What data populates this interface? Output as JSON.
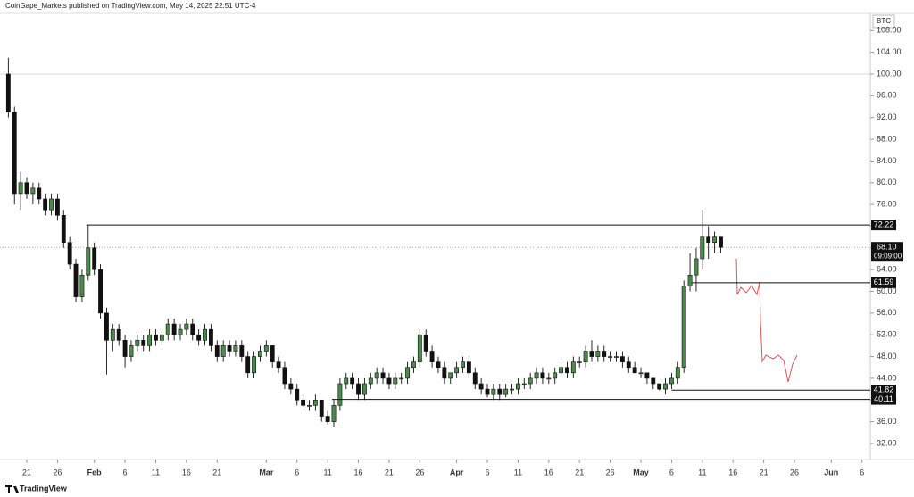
{
  "header": "CoinGape_Markets published on TradingView.com, May 14, 2025 22:51 UTC-4",
  "footer": "TradingView",
  "chart_data": {
    "type": "candlestick",
    "symbol": "BTC",
    "x": [
      18,
      19,
      20,
      21,
      22,
      23,
      24,
      25,
      26,
      27,
      28,
      29,
      30,
      31,
      32,
      33,
      34,
      35,
      36,
      37,
      38,
      39,
      40,
      41,
      42,
      43,
      44,
      45,
      46,
      47,
      48,
      49,
      50,
      51,
      52,
      53,
      54,
      55,
      56,
      57,
      58,
      59,
      60,
      61,
      62,
      63,
      64,
      65,
      66,
      67,
      68,
      69,
      70,
      71,
      72,
      73,
      74,
      75,
      76,
      77,
      78,
      79,
      80,
      81,
      82,
      83,
      84,
      85,
      86,
      87,
      88,
      89,
      90,
      91,
      92,
      93,
      94,
      95,
      96,
      97,
      98,
      99,
      100,
      101,
      102,
      103,
      104,
      105,
      106,
      107,
      108,
      109,
      110,
      111,
      112,
      113,
      114,
      115,
      116,
      117,
      118,
      119,
      120,
      121,
      122,
      123,
      124,
      125,
      126,
      127,
      128,
      129,
      130,
      131,
      132,
      133,
      134
    ],
    "open": [
      100,
      93,
      78,
      80,
      78,
      79,
      77,
      75,
      77,
      74,
      69,
      65,
      59,
      63,
      68,
      64,
      56,
      51,
      53,
      51,
      48,
      50,
      51,
      50,
      52,
      51,
      52,
      54,
      52,
      53,
      54,
      52,
      51,
      53,
      50,
      48,
      50,
      49,
      50,
      48,
      45,
      48,
      49,
      50,
      47,
      46,
      43,
      42,
      40,
      39,
      39,
      40,
      37,
      36,
      39,
      43,
      44,
      43,
      41,
      43,
      44,
      45,
      44,
      43,
      44,
      44,
      46,
      47,
      52,
      49,
      47,
      46,
      44,
      45,
      46,
      47,
      45,
      43,
      42,
      41,
      42,
      41,
      42,
      42,
      43,
      43,
      44,
      45,
      44,
      44,
      45,
      46,
      45,
      47,
      47,
      49,
      48,
      49,
      48,
      48,
      48,
      47,
      46,
      45,
      45,
      44,
      43,
      42,
      43,
      44,
      46,
      61,
      63,
      66,
      70,
      69,
      70
    ],
    "high": [
      103,
      94,
      82,
      81,
      80,
      80,
      78,
      78,
      78,
      75,
      70,
      66,
      64,
      72.22,
      69,
      65,
      57,
      54,
      54,
      52,
      51,
      52,
      52,
      53,
      53,
      53,
      55,
      55,
      54,
      55,
      55,
      53,
      54,
      54,
      51,
      51,
      51,
      51,
      51,
      49,
      49,
      50,
      51,
      50,
      48,
      47,
      44,
      43,
      41,
      40,
      41,
      40,
      38,
      40,
      44,
      45,
      45,
      44,
      44,
      45,
      46,
      46,
      45,
      45,
      45,
      47,
      48,
      53,
      53,
      50,
      48,
      47,
      45,
      47,
      48,
      48,
      46,
      44,
      43,
      43,
      43,
      43,
      43,
      44,
      44,
      45,
      46,
      46,
      45,
      46,
      47,
      47,
      48,
      48,
      50,
      51,
      50,
      50,
      49,
      49,
      49,
      48,
      47,
      46,
      45,
      44,
      43,
      44,
      45,
      47,
      62,
      67,
      68,
      75,
      72,
      71,
      70
    ],
    "low": [
      92,
      76,
      75,
      77,
      76,
      76,
      74,
      74,
      73,
      68,
      64,
      58,
      58,
      62,
      63,
      55,
      44.7,
      49,
      50,
      46,
      47,
      49,
      49,
      49,
      50,
      50,
      51,
      51,
      51,
      52,
      51,
      50,
      50,
      49,
      47,
      47,
      48,
      48,
      47,
      44,
      44,
      47,
      48,
      46,
      45,
      42,
      41,
      39,
      38,
      38,
      38,
      36,
      35.5,
      35,
      38,
      42,
      42,
      40,
      40,
      42,
      43,
      43,
      42,
      42,
      43,
      43,
      45,
      46,
      48,
      46,
      45,
      43,
      43,
      44,
      45,
      44,
      42,
      41,
      40.5,
      40,
      40,
      40.5,
      41,
      41,
      42,
      42,
      43,
      43,
      43,
      43,
      44,
      44,
      44,
      46,
      46,
      47,
      47,
      47,
      47,
      47,
      46,
      45,
      45,
      44,
      43,
      42,
      41.8,
      41,
      42,
      43,
      45,
      60,
      60,
      64,
      66,
      67,
      67
    ],
    "close": [
      93,
      78,
      80,
      78,
      79,
      77,
      75,
      77,
      74,
      69,
      65,
      59,
      63,
      68,
      64,
      56,
      51,
      53,
      51,
      48,
      50,
      51,
      50,
      52,
      51,
      52,
      54,
      52,
      53,
      54,
      52,
      51,
      53,
      50,
      48,
      50,
      49,
      50,
      48,
      45,
      48,
      49,
      50,
      47,
      46,
      43,
      42,
      40,
      39,
      39,
      40,
      37,
      36,
      39,
      43,
      44,
      43,
      41,
      43,
      44,
      45,
      44,
      43,
      44,
      44,
      46,
      47,
      52,
      49,
      47,
      46,
      44,
      45,
      46,
      47,
      45,
      43,
      42,
      41,
      42,
      41,
      42,
      42,
      43,
      43,
      44,
      45,
      44,
      44,
      45,
      46,
      45,
      47,
      47,
      49,
      48,
      49,
      48,
      48,
      48,
      47,
      46,
      45,
      45,
      44,
      43,
      42,
      43,
      44,
      46,
      61,
      63,
      66,
      70,
      69,
      70,
      68.1
    ],
    "up_color": "#4a8a4a",
    "down_color": "#111111",
    "xlim": [
      16.64,
      158.35
    ],
    "ylim": [
      29.04,
      113.63
    ],
    "xticks": [
      21,
      26,
      {
        "value": 32,
        "label": "Feb"
      },
      {
        "value": 37,
        "label": "6"
      },
      {
        "value": 42,
        "label": "11"
      },
      {
        "value": 47,
        "label": "16"
      },
      {
        "value": 52,
        "label": "21"
      },
      {
        "value": 60,
        "label": "Mar"
      },
      {
        "value": 65,
        "label": "6"
      },
      {
        "value": 70,
        "label": "11"
      },
      {
        "value": 75,
        "label": "16"
      },
      {
        "value": 80,
        "label": "21"
      },
      {
        "value": 85,
        "label": "26"
      },
      {
        "value": 91,
        "label": "Apr"
      },
      {
        "value": 96,
        "label": "6"
      },
      {
        "value": 101,
        "label": "11"
      },
      {
        "value": 106,
        "label": "16"
      },
      {
        "value": 111,
        "label": "21"
      },
      {
        "value": 116,
        "label": "26"
      },
      {
        "value": 121,
        "label": "May"
      },
      {
        "value": 126,
        "label": "6"
      },
      {
        "value": 131,
        "label": "11"
      },
      {
        "value": 136,
        "label": "16"
      },
      {
        "value": 141,
        "label": "21"
      },
      {
        "value": 146,
        "label": "26"
      },
      {
        "value": 152,
        "label": "Jun"
      },
      {
        "value": 157,
        "label": "6"
      }
    ],
    "yticks": [
      {
        "value": 32,
        "label": "32.00"
      },
      {
        "value": 36,
        "label": "36.00"
      },
      {
        "value": 40,
        "label": "40.00"
      },
      {
        "value": 44,
        "label": "44.00"
      },
      {
        "value": 48,
        "label": "48.00"
      },
      {
        "value": 52,
        "label": "52.00"
      },
      {
        "value": 56,
        "label": "56.00"
      },
      {
        "value": 60,
        "label": "60.00"
      },
      {
        "value": 64,
        "label": "64.00"
      },
      {
        "value": 68,
        "label": "68.00"
      },
      {
        "value": 72,
        "label": "72.00"
      },
      {
        "value": 76,
        "label": "76.00"
      },
      {
        "value": 80,
        "label": "80.00"
      },
      {
        "value": 84,
        "label": "84.00"
      },
      {
        "value": 88,
        "label": "88.00"
      },
      {
        "value": 92,
        "label": "92.00"
      },
      {
        "value": 96,
        "label": "96.00"
      },
      {
        "value": 100,
        "label": "100.00"
      },
      {
        "value": 104,
        "label": "104.00"
      },
      {
        "value": 108,
        "label": "108.00"
      }
    ],
    "reference_line": 100,
    "levels": [
      {
        "value": 72.22,
        "from": 30.7
      },
      {
        "value": 61.59,
        "from": 129.3
      },
      {
        "value": 41.82,
        "from": 126
      },
      {
        "value": 40.11,
        "from": 70.7
      }
    ],
    "last_price": {
      "value": 68.1,
      "label": "68.10",
      "countdown": "09:09:00"
    }
  }
}
